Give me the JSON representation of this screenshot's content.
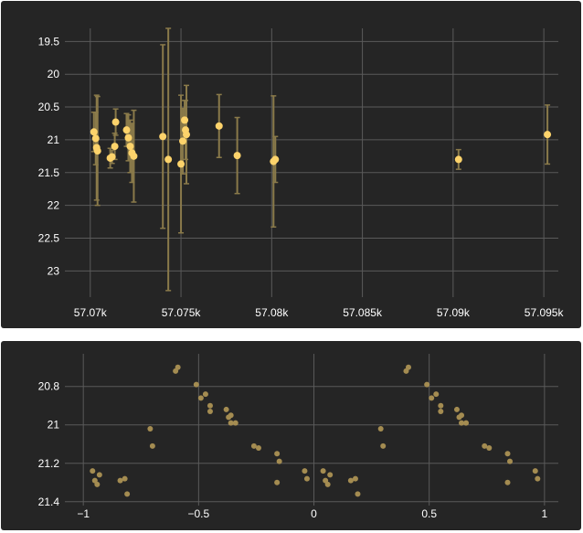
{
  "chart_data": [
    {
      "type": "scatter",
      "title": "",
      "xlabel": "",
      "ylabel": "",
      "y_reversed": true,
      "xlim": [
        57068.6,
        57095.8
      ],
      "ylim": [
        19.3,
        23.4
      ],
      "xticks": [
        57070,
        57075,
        57080,
        57085,
        57090,
        57095
      ],
      "xtick_labels": [
        "57.07k",
        "57.075k",
        "57.08k",
        "57.085k",
        "57.09k",
        "57.095k"
      ],
      "yticks": [
        19.5,
        20,
        20.5,
        21,
        21.5,
        22,
        22.5,
        23
      ],
      "ytick_labels": [
        "19.5",
        "20",
        "20.5",
        "21",
        "21.5",
        "22",
        "22.5",
        "23"
      ],
      "grid": true,
      "marker_color": "#fdd36b",
      "errorbar_color": "#8a7a4a",
      "points": [
        {
          "x": 57070.2,
          "y": 20.88,
          "err": 0.3
        },
        {
          "x": 57070.3,
          "y": 20.98,
          "err": 0.4
        },
        {
          "x": 57070.35,
          "y": 21.12,
          "err": 0.8
        },
        {
          "x": 57070.4,
          "y": 21.17,
          "err": 0.83
        },
        {
          "x": 57071.1,
          "y": 21.28,
          "err": 0.15
        },
        {
          "x": 57071.2,
          "y": 21.26,
          "err": 0.1
        },
        {
          "x": 57071.35,
          "y": 21.1,
          "err": 0.2
        },
        {
          "x": 57071.4,
          "y": 20.73,
          "err": 0.2
        },
        {
          "x": 57072.0,
          "y": 20.85,
          "err": 0.25
        },
        {
          "x": 57072.1,
          "y": 20.97,
          "err": 0.35
        },
        {
          "x": 57072.2,
          "y": 21.1,
          "err": 0.4
        },
        {
          "x": 57072.3,
          "y": 21.2,
          "err": 0.45
        },
        {
          "x": 57072.4,
          "y": 21.25,
          "err": 0.7
        },
        {
          "x": 57074.0,
          "y": 20.95,
          "err": 1.4
        },
        {
          "x": 57074.3,
          "y": 21.3,
          "err": 2.0
        },
        {
          "x": 57075.0,
          "y": 21.37,
          "err": 1.05
        },
        {
          "x": 57075.1,
          "y": 21.02,
          "err": 0.5
        },
        {
          "x": 57075.2,
          "y": 20.7,
          "err": 0.3
        },
        {
          "x": 57075.25,
          "y": 20.85,
          "err": 0.45
        },
        {
          "x": 57075.3,
          "y": 20.92,
          "err": 0.75
        },
        {
          "x": 57077.1,
          "y": 20.79,
          "err": 0.48
        },
        {
          "x": 57078.1,
          "y": 21.24,
          "err": 0.58
        },
        {
          "x": 57080.1,
          "y": 21.33,
          "err": 1.0
        },
        {
          "x": 57080.2,
          "y": 21.3,
          "err": 0.35
        },
        {
          "x": 57090.3,
          "y": 21.3,
          "err": 0.15
        },
        {
          "x": 57095.2,
          "y": 20.92,
          "err": 0.45
        }
      ]
    },
    {
      "type": "scatter",
      "title": "",
      "xlabel": "",
      "ylabel": "",
      "y_reversed": true,
      "xlim": [
        -1.08,
        1.06
      ],
      "ylim": [
        20.63,
        21.42
      ],
      "xticks": [
        -1,
        -0.5,
        0,
        0.5,
        1
      ],
      "xtick_labels": [
        "−1",
        "−0.5",
        "0",
        "0.5",
        "1"
      ],
      "yticks": [
        20.8,
        21,
        21.2,
        21.4
      ],
      "ytick_labels": [
        "20.8",
        "21",
        "21.2",
        "21.4"
      ],
      "grid": true,
      "marker_color": "#a48c51",
      "points": [
        {
          "x": -0.96,
          "y": 21.24
        },
        {
          "x": -0.95,
          "y": 21.29
        },
        {
          "x": -0.94,
          "y": 21.31
        },
        {
          "x": -0.93,
          "y": 21.26
        },
        {
          "x": -0.84,
          "y": 21.29
        },
        {
          "x": -0.82,
          "y": 21.28
        },
        {
          "x": -0.81,
          "y": 21.36
        },
        {
          "x": -0.71,
          "y": 21.02
        },
        {
          "x": -0.7,
          "y": 21.11
        },
        {
          "x": -0.6,
          "y": 20.72
        },
        {
          "x": -0.59,
          "y": 20.7
        },
        {
          "x": -0.51,
          "y": 20.79
        },
        {
          "x": -0.49,
          "y": 20.86
        },
        {
          "x": -0.47,
          "y": 20.84
        },
        {
          "x": -0.45,
          "y": 20.9
        },
        {
          "x": -0.45,
          "y": 20.93
        },
        {
          "x": -0.38,
          "y": 20.92
        },
        {
          "x": -0.37,
          "y": 20.96
        },
        {
          "x": -0.36,
          "y": 20.99
        },
        {
          "x": -0.36,
          "y": 20.95
        },
        {
          "x": -0.34,
          "y": 20.99
        },
        {
          "x": -0.26,
          "y": 21.11
        },
        {
          "x": -0.24,
          "y": 21.12
        },
        {
          "x": -0.16,
          "y": 21.15
        },
        {
          "x": -0.16,
          "y": 21.3
        },
        {
          "x": -0.15,
          "y": 21.19
        },
        {
          "x": -0.04,
          "y": 21.24
        },
        {
          "x": -0.03,
          "y": 21.28
        },
        {
          "x": 0.04,
          "y": 21.24
        },
        {
          "x": 0.05,
          "y": 21.29
        },
        {
          "x": 0.06,
          "y": 21.31
        },
        {
          "x": 0.07,
          "y": 21.26
        },
        {
          "x": 0.16,
          "y": 21.29
        },
        {
          "x": 0.18,
          "y": 21.28
        },
        {
          "x": 0.19,
          "y": 21.36
        },
        {
          "x": 0.29,
          "y": 21.02
        },
        {
          "x": 0.3,
          "y": 21.11
        },
        {
          "x": 0.4,
          "y": 20.72
        },
        {
          "x": 0.41,
          "y": 20.7
        },
        {
          "x": 0.49,
          "y": 20.79
        },
        {
          "x": 0.51,
          "y": 20.86
        },
        {
          "x": 0.53,
          "y": 20.84
        },
        {
          "x": 0.55,
          "y": 20.9
        },
        {
          "x": 0.55,
          "y": 20.93
        },
        {
          "x": 0.62,
          "y": 20.92
        },
        {
          "x": 0.63,
          "y": 20.96
        },
        {
          "x": 0.64,
          "y": 20.99
        },
        {
          "x": 0.64,
          "y": 20.95
        },
        {
          "x": 0.66,
          "y": 20.99
        },
        {
          "x": 0.74,
          "y": 21.11
        },
        {
          "x": 0.76,
          "y": 21.12
        },
        {
          "x": 0.84,
          "y": 21.15
        },
        {
          "x": 0.84,
          "y": 21.3
        },
        {
          "x": 0.85,
          "y": 21.19
        },
        {
          "x": 0.96,
          "y": 21.24
        },
        {
          "x": 0.97,
          "y": 21.28
        }
      ]
    }
  ]
}
